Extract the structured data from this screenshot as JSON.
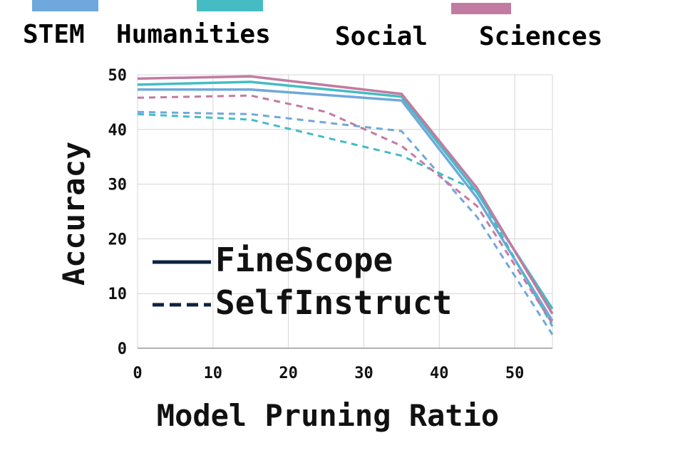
{
  "chart_data": {
    "type": "line",
    "xlabel": "Model Pruning Ratio",
    "ylabel": "Accuracy",
    "xlim": [
      0,
      55
    ],
    "ylim": [
      0,
      50
    ],
    "xticks": [
      0,
      10,
      20,
      30,
      40,
      50
    ],
    "yticks": [
      0,
      10,
      20,
      30,
      40,
      50
    ],
    "grid": true,
    "categories": [
      {
        "name": "STEM",
        "color": "#6fa8dc"
      },
      {
        "name": "Humanities",
        "color": "#45bcc4"
      },
      {
        "name": "Social",
        "color": "#c27ba0"
      },
      {
        "name": "Sciences",
        "color": "#c27ba0"
      }
    ],
    "method_legend": [
      {
        "label": "FineScope",
        "style": "solid"
      },
      {
        "label": "SelfInstruct",
        "style": "dashed"
      }
    ],
    "series": [
      {
        "category": "STEM",
        "method": "FineScope",
        "color": "#6fa8dc",
        "dashed": false,
        "x": [
          0,
          15,
          35,
          45,
          55
        ],
        "y": [
          47.3,
          47.3,
          45.3,
          27.5,
          5.0
        ]
      },
      {
        "category": "Humanities",
        "method": "FineScope",
        "color": "#45bcc4",
        "dashed": false,
        "x": [
          0,
          15,
          35,
          45,
          55
        ],
        "y": [
          48.2,
          48.7,
          46.0,
          28.5,
          7.2
        ]
      },
      {
        "category": "Social Sciences",
        "method": "FineScope",
        "color": "#c27ba0",
        "dashed": false,
        "x": [
          0,
          15,
          35,
          45,
          55
        ],
        "y": [
          49.3,
          49.7,
          46.5,
          29.3,
          6.3
        ]
      },
      {
        "category": "STEM",
        "method": "SelfInstruct",
        "color": "#6fa8dc",
        "dashed": true,
        "x": [
          0,
          15,
          35,
          45,
          55
        ],
        "y": [
          43.2,
          42.8,
          39.7,
          24.0,
          2.5
        ]
      },
      {
        "category": "Humanities",
        "method": "SelfInstruct",
        "color": "#45bcc4",
        "dashed": true,
        "x": [
          0,
          15,
          35,
          45,
          55
        ],
        "y": [
          42.8,
          41.8,
          35.2,
          28.8,
          4.0
        ]
      },
      {
        "category": "Social Sciences",
        "method": "SelfInstruct",
        "color": "#c27ba0",
        "dashed": true,
        "x": [
          0,
          15,
          25,
          35,
          45,
          55
        ],
        "y": [
          45.8,
          46.2,
          43.2,
          37.0,
          26.0,
          4.5
        ]
      }
    ]
  }
}
